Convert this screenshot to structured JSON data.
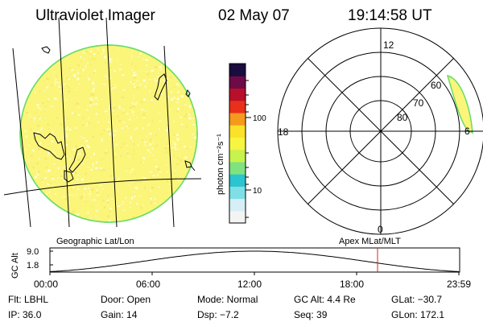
{
  "header": {
    "title": "Ultraviolet Imager",
    "date": "02 May 07",
    "time": "19:14:58 UT"
  },
  "earth_image": {
    "caption": "Geographic Lat/Lon",
    "fill_color": "#fbf57a",
    "speckle_colors": [
      "#fffbb8",
      "#f6e96a",
      "#ffffd6"
    ],
    "limb_color": "#66dd66"
  },
  "colorbar": {
    "unit_label": "photon cm⁻²s⁻¹",
    "tick_labels": [
      "100",
      "10"
    ],
    "palette": [
      "#f4f4f4",
      "#d6eef6",
      "#7fdfe6",
      "#2cc4cf",
      "#7fe37f",
      "#c8f24e",
      "#f6f542",
      "#fbe129",
      "#f59a1d",
      "#e8301b",
      "#b8102a",
      "#6e0b47",
      "#1a0c3e"
    ]
  },
  "polar_plot": {
    "caption": "Apex MLat/MLT",
    "mlt_labels": {
      "top": "12",
      "bottom": "0",
      "left": "18",
      "right": "6"
    },
    "mlat_labels": [
      "80",
      "70",
      "60"
    ],
    "aurora_color": "#fbf57a",
    "aurora_edge_color": "#66dd66"
  },
  "altitude_plot": {
    "ylabel": "GC Alt",
    "y_ticks": [
      "9.0",
      "1.8"
    ],
    "x_ticks": [
      "00:00",
      "06:00",
      "12:00",
      "18:00",
      "23:59"
    ],
    "current_time_color": "#dd2222"
  },
  "status": {
    "row1": {
      "filter": "Flt: LBHL",
      "door": "Door: Open",
      "mode": "Mode: Normal",
      "gc_alt": "GC Alt: 4.4 Re",
      "glat": "GLat: −30.7"
    },
    "row2": {
      "ip": "IP: 36.0",
      "gain": "Gain: 14",
      "dsp": "Dsp:  −7.2",
      "seq": "Seq: 39",
      "glon": "GLon: 172.1"
    }
  }
}
